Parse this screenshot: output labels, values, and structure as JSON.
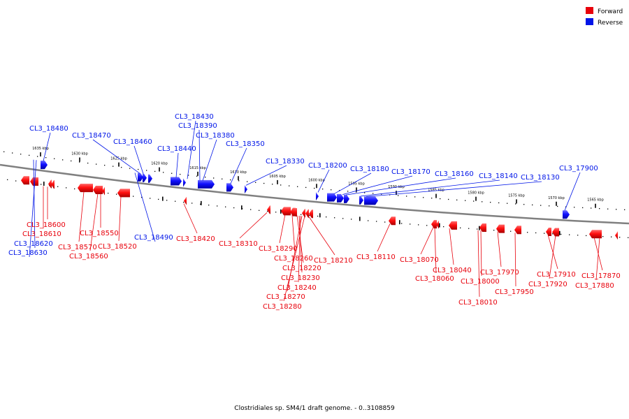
{
  "legend": {
    "forward_label": "Forward",
    "reverse_label": "Reverse",
    "forward_color": "#e8000b",
    "reverse_color": "#0015e8"
  },
  "caption": "Clostridiales sp. SM4/1 draft genome. - 0..3108859",
  "scale_ticks": [
    "1635 kbp",
    "1630 kbp",
    "1625 kbp",
    "1620 kbp",
    "1615 kbp",
    "1610 kbp",
    "1605 kbp",
    "1600 kbp",
    "1595 kbp",
    "1590 kbp",
    "1585 kbp",
    "1580 kbp",
    "1575 kbp",
    "1570 kbp",
    "1565 kbp"
  ],
  "genes_reverse": [
    "CL3_18480",
    "CL3_18470",
    "CL3_18460",
    "CL3_18440",
    "CL3_18430",
    "CL3_18390",
    "CL3_18380",
    "CL3_18350",
    "CL3_18330",
    "CL3_18200",
    "CL3_18180",
    "CL3_18170",
    "CL3_18160",
    "CL3_18140",
    "CL3_18130",
    "CL3_17900",
    "CL3_18490",
    "CL3_18620",
    "CL3_18630"
  ],
  "genes_forward": [
    "CL3_18600",
    "CL3_18610",
    "CL3_18550",
    "CL3_18570",
    "CL3_18520",
    "CL3_18560",
    "CL3_18420",
    "CL3_18310",
    "CL3_18290",
    "CL3_18260",
    "CL3_18220",
    "CL3_18230",
    "CL3_18240",
    "CL3_18270",
    "CL3_18280",
    "CL3_18210",
    "CL3_18110",
    "CL3_18070",
    "CL3_18060",
    "CL3_18040",
    "CL3_18000",
    "CL3_18010",
    "CL3_17970",
    "CL3_17950",
    "CL3_17910",
    "CL3_17920",
    "CL3_17870",
    "CL3_17880"
  ]
}
